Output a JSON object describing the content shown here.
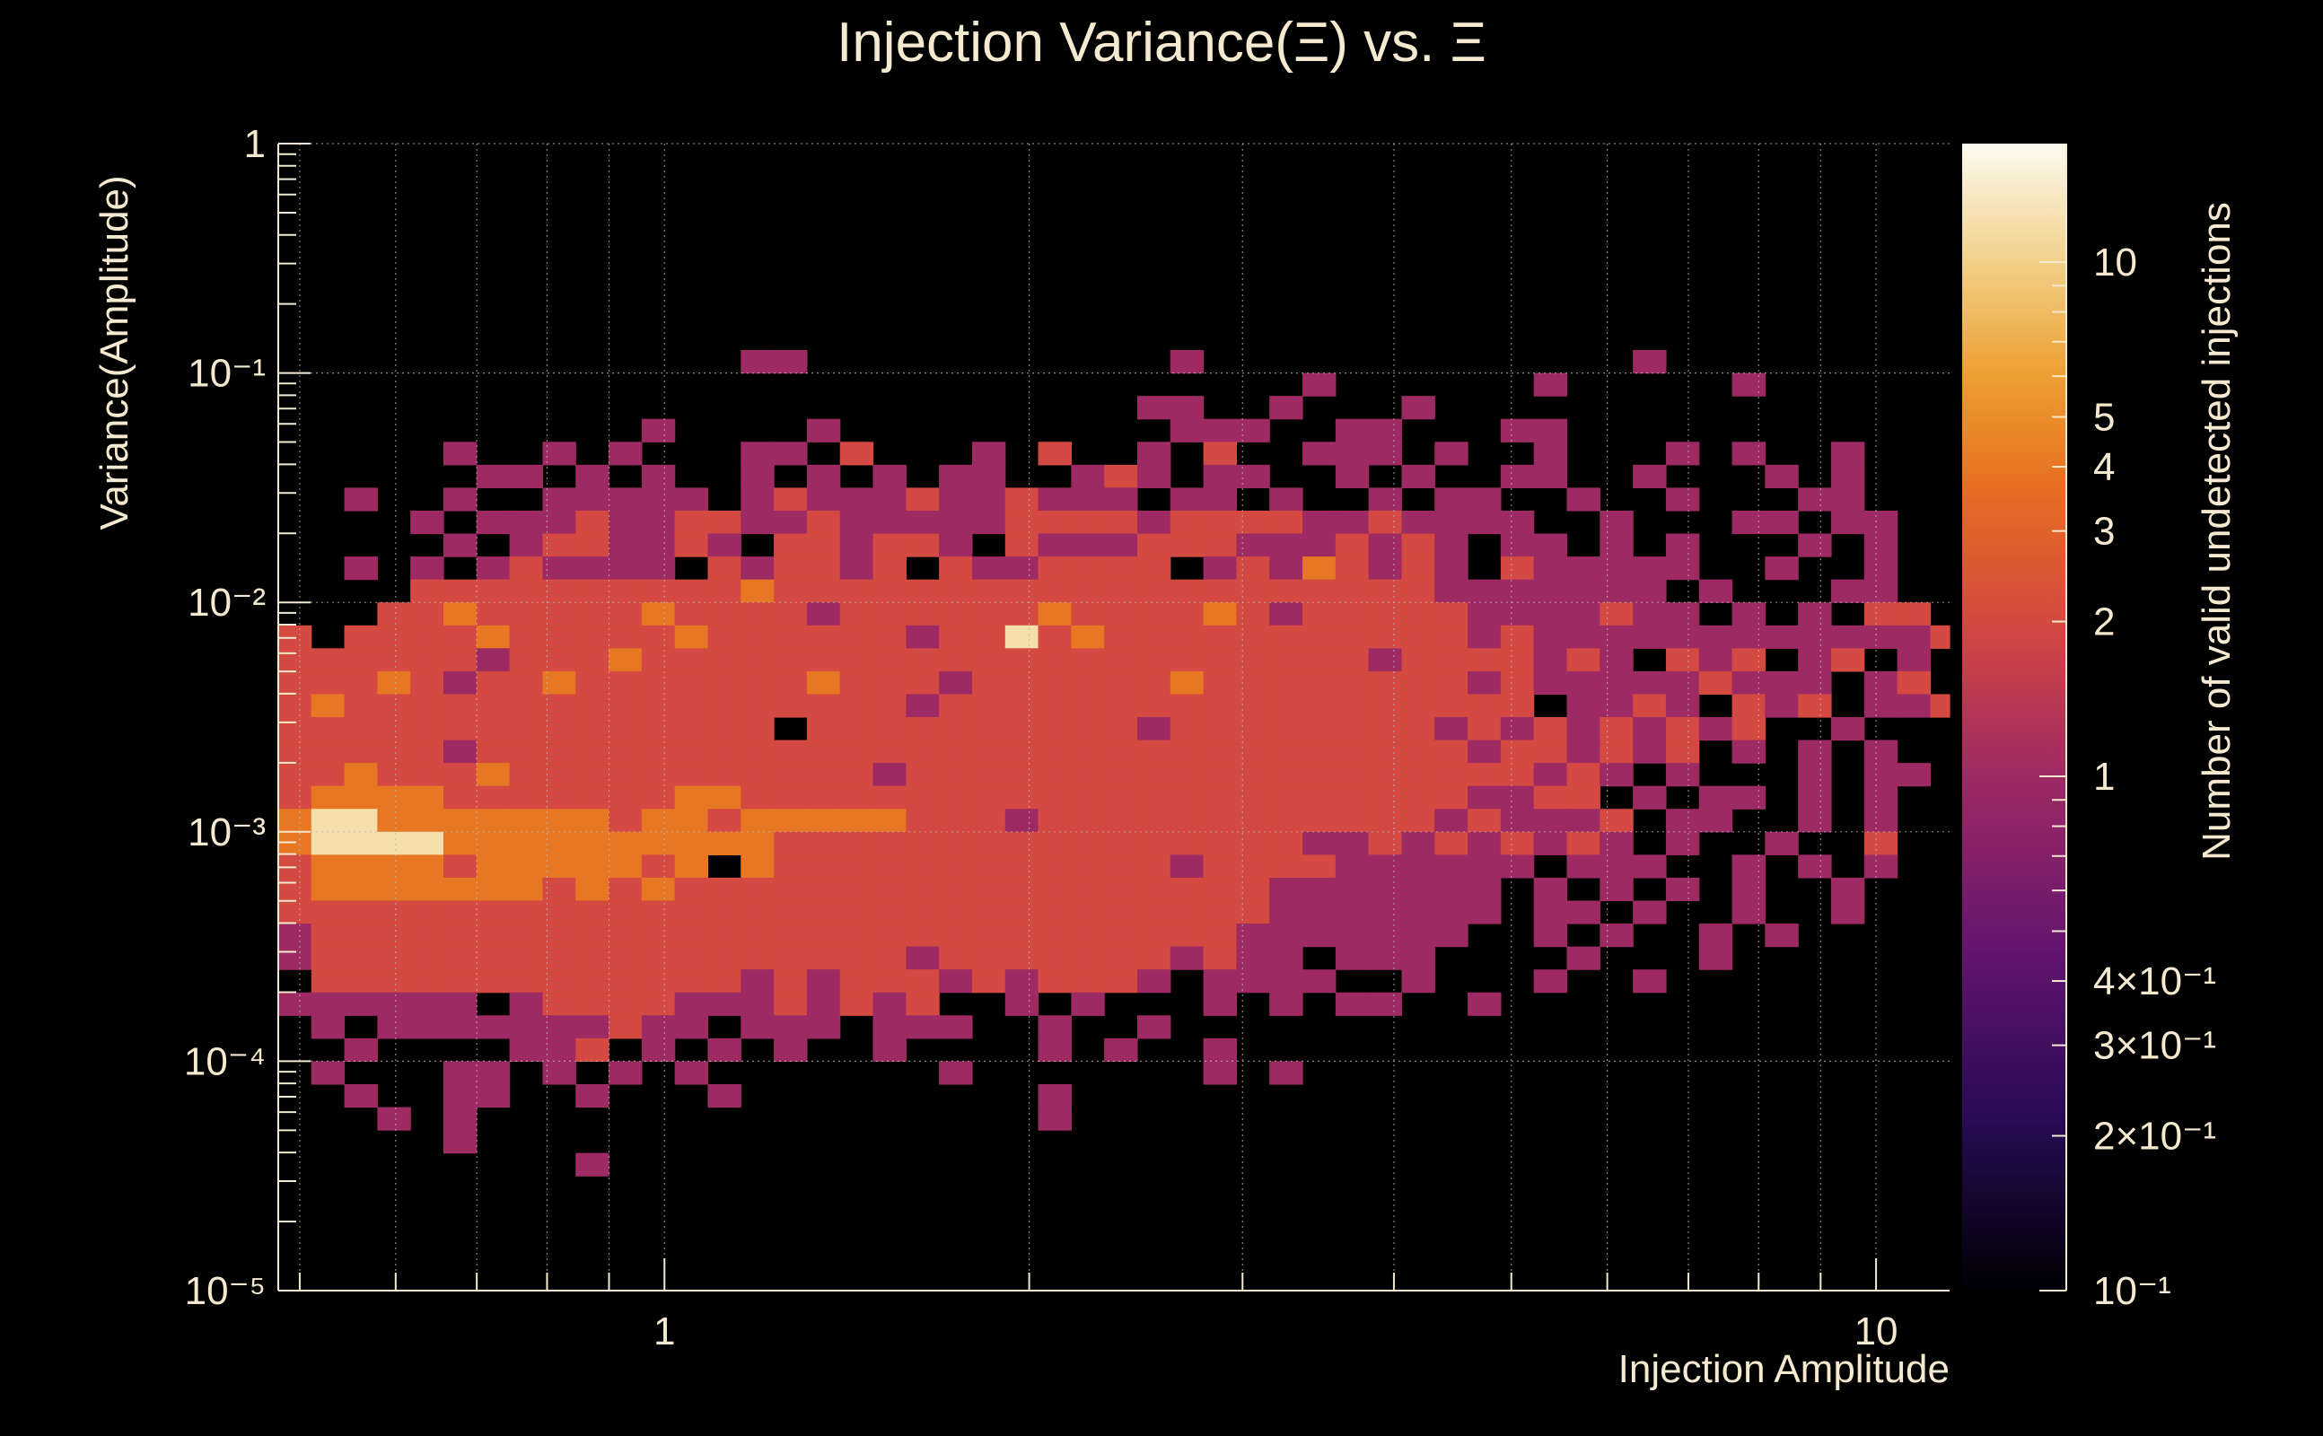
{
  "chart_data": {
    "type": "heatmap",
    "title": "Injection Variance(Ξ) vs. Ξ",
    "xlabel": "Injection Amplitude",
    "ylabel": "Variance(Amplitude)",
    "zlabel": "Number of valid undetected injections",
    "x_scale": "log",
    "y_scale": "log",
    "z_scale": "log",
    "xlim": [
      0.48,
      11.5
    ],
    "ylim": [
      1e-05,
      1
    ],
    "zlim": [
      0.1,
      17
    ],
    "grid": true,
    "x_ticks": [
      {
        "v": 1,
        "label": "1"
      },
      {
        "v": 10,
        "label": "10"
      }
    ],
    "y_ticks": [
      {
        "v": 1,
        "label": "1"
      },
      {
        "v": 0.1,
        "label": "10⁻¹"
      },
      {
        "v": 0.01,
        "label": "10⁻²"
      },
      {
        "v": 0.001,
        "label": "10⁻³"
      },
      {
        "v": 0.0001,
        "label": "10⁻⁴"
      },
      {
        "v": 1e-05,
        "label": "10⁻⁵"
      }
    ],
    "z_ticks": [
      {
        "v": 10,
        "label": "10"
      },
      {
        "v": 5,
        "label": "5"
      },
      {
        "v": 4,
        "label": "4"
      },
      {
        "v": 3,
        "label": "3"
      },
      {
        "v": 2,
        "label": "2"
      },
      {
        "v": 1,
        "label": "1"
      },
      {
        "v": 0.4,
        "label": "4×10⁻¹"
      },
      {
        "v": 0.3,
        "label": "3×10⁻¹"
      },
      {
        "v": 0.2,
        "label": "2×10⁻¹"
      },
      {
        "v": 0.1,
        "label": "10⁻¹"
      }
    ],
    "bins": {
      "x_edges_log10": {
        "start": -0.3188,
        "step": 0.02727,
        "count": 50
      },
      "y_edges_log10": {
        "start": -5.0,
        "step": 0.1,
        "count": 50
      },
      "row_order": "top_to_bottom_from_log10y_-0.2",
      "rows": [
        "..................................................",
        "..................................................",
        "..................................................",
        "..................................................",
        "..................................................",
        "..................................................",
        "..................................................",
        "..............11...........1.............1.......",
        "...............................1......1.....1......",
        "..........................11..1...1...............",
        "...........1....1..........111..11...11...........",
        ".....1..1.1...11.2...1.2..1.2..111.1..1...1.1..1..",
        "......11.1.1..1.1.1.11..121.11..1.1..11..1...1.1..",
        "..1..1..11111.121112112111.11.1..1.11..1..1...11..",
        "....1.11121122112111112222122221121111..1...11.11.",
        ".....1.1221121.221221.21112221112121.11.1.1...1.1.",
        "..1.1.121111.212212.2112222.12132121.211111..1..1..",
        "....22222222223222222222222222222221111111.1...11.",
        "...2232222232222122222232222321222221111211.1.1.22",
        "2.2222322222322222212242322222222222121111111111112",
        "22222212223222222222222222222222212222121.212.12.1",
        "22232122322222223222122222232222222212111112111.12",
        "23222222222222222221222222222222222222.1121.212.112",
        "222222222222222.22222222221222222221212121212..1..",
        "2222212222222222222222222222222222221221212.1.1.1",
        "22322232222222222212222222222222222222121.1...1.11.",
        "2333322222223322222222222222222222221122.1.11.1.1..",
        "34433333332332333332221222222222222121112.11..1.1.",
        "34444333333333322222222222222221121212121.1..1..2.",
        "2333323333323.322222222222212222111111.111..1.1.1.",
        "2333333323232222222222222222221111111.1.1.1.1..1..",
        "2222222222222222222222222222221111111.11.1..1..1..",
        "122222222222222222222222222221111111..1.1..1.1....",
        "1222222222222222222122222221211.111....1...1.....",
        ".22222222222221212221212221.1111..1...1..1.......",
        "111111.1222211121212..1.1...1.1.11..1............",
        ".1.1111111211.111.111..1..1.......................",
        "..1....112.1.1.1..1....1.1..1....................",
        ".1...11.1.1.1.......1.......1.1..................",
        "..1..11..1...1.........1........................",
        "...1.1.................1..........................",
        ".....1...........................................",
        ".........1.......................................",
        ".................................................",
        ".................................................",
        ".................................................",
        ".................................................",
        ".................................................",
        ".................................................",
        "................................................."
      ],
      "value_codes": {
        "1": 1,
        "2": 2,
        "3": 4,
        "4": 12,
        ".": 0
      }
    }
  }
}
